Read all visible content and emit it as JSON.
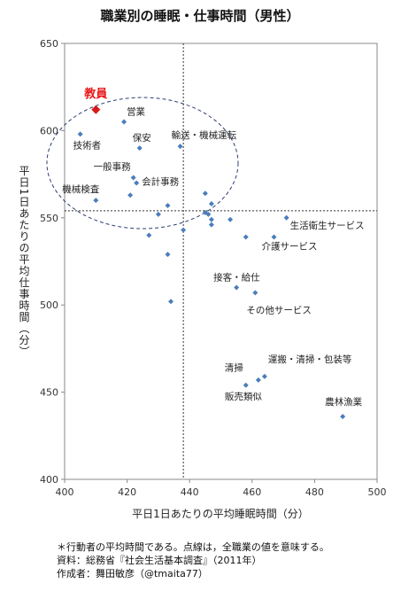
{
  "chart_data": {
    "type": "scatter",
    "title": "職業別の睡眠・仕事時間（男性）",
    "xlabel": "平日1日あたりの平均睡眠時間（分）",
    "ylabel": "平日1日あたりの平均仕事時間（分）",
    "xlim": [
      400,
      500
    ],
    "ylim": [
      400,
      650
    ],
    "xticks": [
      400,
      420,
      440,
      460,
      480,
      500
    ],
    "yticks": [
      400,
      450,
      500,
      550,
      600,
      650
    ],
    "grid": false,
    "reference_lines": {
      "x": 438,
      "y": 554
    },
    "highlight": {
      "label": "教員",
      "x": 410,
      "y": 612,
      "color": "#d7191c"
    },
    "point_color": "#4a7ebb",
    "points": [
      {
        "label": "技術者",
        "x": 405,
        "y": 598
      },
      {
        "label": "営業",
        "x": 419,
        "y": 605
      },
      {
        "label": "保安",
        "x": 424,
        "y": 590
      },
      {
        "label": "輸送・機械運転",
        "x": 437,
        "y": 591
      },
      {
        "label": "一般事務",
        "x": 422,
        "y": 573
      },
      {
        "label": "会計事務",
        "x": 423,
        "y": 570
      },
      {
        "label": "機械検査",
        "x": 410,
        "y": 560
      },
      {
        "label": "",
        "x": 421,
        "y": 563
      },
      {
        "label": "",
        "x": 433,
        "y": 557
      },
      {
        "label": "",
        "x": 430,
        "y": 552
      },
      {
        "label": "",
        "x": 445,
        "y": 564
      },
      {
        "label": "",
        "x": 447,
        "y": 558
      },
      {
        "label": "",
        "x": 445,
        "y": 553
      },
      {
        "label": "",
        "x": 446,
        "y": 552
      },
      {
        "label": "",
        "x": 447,
        "y": 549
      },
      {
        "label": "",
        "x": 447,
        "y": 546
      },
      {
        "label": "",
        "x": 453,
        "y": 549
      },
      {
        "label": "生活衛生サービス",
        "x": 471,
        "y": 550
      },
      {
        "label": "",
        "x": 438,
        "y": 543
      },
      {
        "label": "",
        "x": 427,
        "y": 540
      },
      {
        "label": "",
        "x": 458,
        "y": 539
      },
      {
        "label": "介護サービス",
        "x": 467,
        "y": 539
      },
      {
        "label": "",
        "x": 433,
        "y": 529
      },
      {
        "label": "接客・給仕",
        "x": 455,
        "y": 510
      },
      {
        "label": "その他サービス",
        "x": 461,
        "y": 507
      },
      {
        "label": "",
        "x": 434,
        "y": 502
      },
      {
        "label": "清掃",
        "x": 458,
        "y": 454
      },
      {
        "label": "運搬・清掃・包装等",
        "x": 464,
        "y": 459
      },
      {
        "label": "販売類似",
        "x": 462,
        "y": 457
      },
      {
        "label": "農林漁業",
        "x": 489,
        "y": 436
      }
    ]
  },
  "notes": [
    "＊行動者の平均時間である。点線は，全職業の値を意味する。",
    "資料：総務省『社会生活基本調査』（2011年）",
    "作成者：舞田敏彦（@tmaita77）"
  ]
}
